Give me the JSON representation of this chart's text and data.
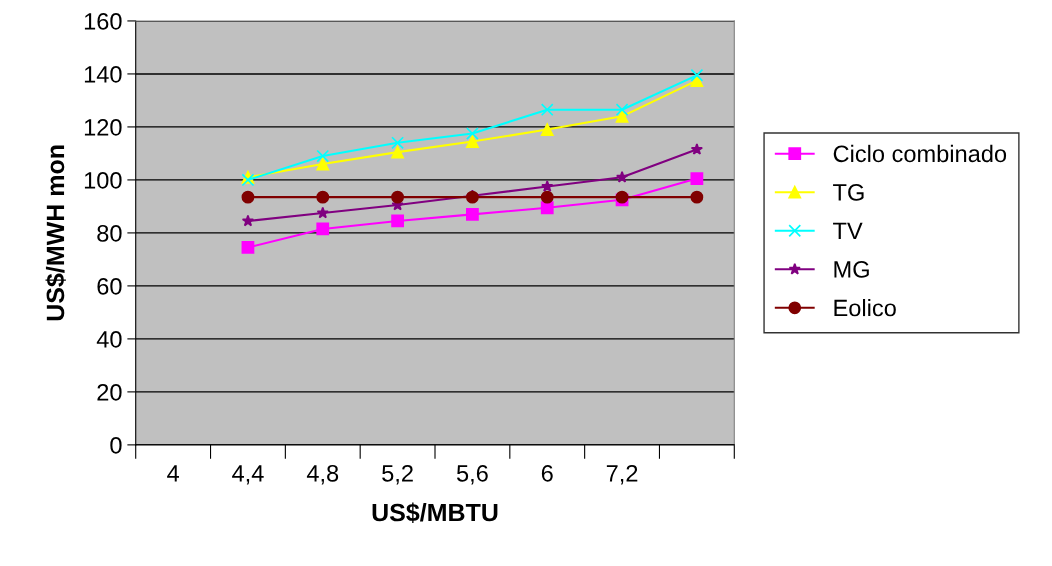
{
  "chart_data": {
    "type": "line",
    "categories": [
      "4",
      "4,4",
      "4,8",
      "5,2",
      "5,6",
      "6",
      "7,2",
      null
    ],
    "xlabel": "US$/MBTU",
    "ylabel": "US$/MWH mon",
    "ylim": [
      0,
      160
    ],
    "yticks": [
      0,
      20,
      40,
      60,
      80,
      100,
      120,
      140,
      160
    ],
    "grid": "y",
    "legend": "right",
    "series": [
      {
        "name": "Ciclo combinado",
        "color": "#ff00ff",
        "marker": "square",
        "values": [
          null,
          74.5,
          81.5,
          84.5,
          87,
          89.5,
          92.5,
          100.5
        ]
      },
      {
        "name": "TG",
        "color": "#ffff00",
        "marker": "triangle",
        "values": [
          null,
          101,
          106,
          110.5,
          114.5,
          119,
          124,
          137.5
        ]
      },
      {
        "name": "TV",
        "color": "#00ffff",
        "marker": "cross",
        "values": [
          null,
          100,
          109,
          114,
          117.5,
          126.5,
          126.5,
          139.5
        ]
      },
      {
        "name": "MG",
        "color": "#800080",
        "marker": "star",
        "values": [
          null,
          84.5,
          87.5,
          90.5,
          94,
          97.5,
          101,
          111.5
        ]
      },
      {
        "name": "Eolico",
        "color": "#800000",
        "marker": "circle",
        "values": [
          null,
          93.5,
          93.5,
          93.5,
          93.5,
          93.5,
          93.5,
          93.5
        ]
      }
    ]
  }
}
